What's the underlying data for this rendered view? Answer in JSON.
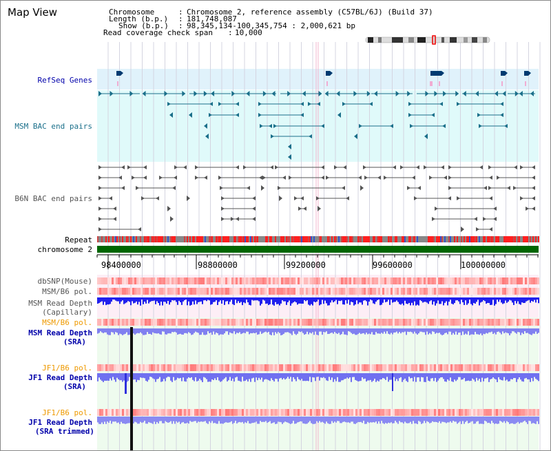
{
  "window": {
    "title": "Map View"
  },
  "info": {
    "chromosome_label": "Chromosome",
    "chromosome_value": "Chromosome 2, reference assembly (C57BL/6J) (Build 37)",
    "length_label": "Length (b.p.)",
    "length_value": "181,748,087",
    "show_label": "Show (b.p.)",
    "show_value": "98,345,134-100,345,754 : 2,000,621 bp",
    "coverage_label": "Read coverage check span",
    "coverage_value": "10,000"
  },
  "tracks": {
    "refseq": "RefSeq Genes",
    "msm_bac": "MSM BAC end pairs",
    "b6n_bac": "B6N BAC end pairs",
    "repeat": "Repeat",
    "chromosome": "chromosome 2",
    "dbsnp": "dbSNP(Mouse)",
    "msm_b6_pol_1": "MSM/B6 pol.",
    "msm_depth_cap_1": "MSM Read Depth",
    "msm_depth_cap_2": "(Capillary)",
    "msm_b6_pol_2": "MSM/B6 pol.",
    "msm_depth_sra_1": "MSM Read Depth",
    "msm_depth_sra_2": "(SRA)",
    "jf1_b6_pol_1": "JF1/B6 pol.",
    "jf1_depth_sra_1": "JF1 Read Depth",
    "jf1_depth_sra_2": "(SRA)",
    "jf1_b6_pol_2": "JF1/B6 pol.",
    "jf1_depth_trim_1": "JF1 Read Depth",
    "jf1_depth_trim_2": "(SRA trimmed)"
  },
  "axis": {
    "ticks": [
      "98400000",
      "98800000",
      "99200000",
      "99600000",
      "100000000"
    ]
  },
  "colors": {
    "refseq_bg": "#e0f2fb",
    "msm_bg": "#e0fafa",
    "pink_bg": "#fdeef6",
    "green_bg": "#eefbee",
    "chrom_green": "#006600",
    "blue_label": "#0000aa",
    "orange_label": "#ee9900",
    "teal": "#1a6f8a",
    "gray_feature": "#555555"
  }
}
